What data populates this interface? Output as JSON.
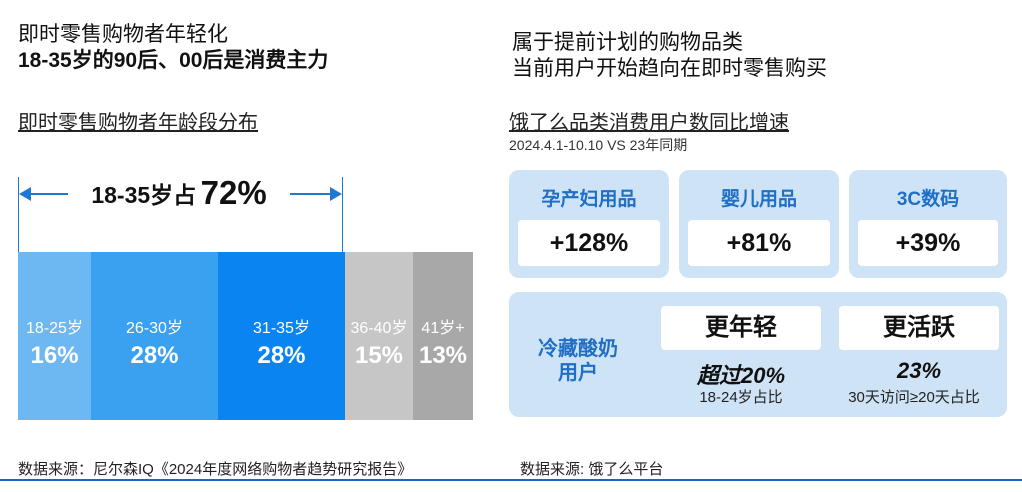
{
  "left": {
    "heading_line1": "即时零售购物者年轻化",
    "heading_line2": "18-35岁的90后、00后是消费主力",
    "subtitle": "即时零售购物者年龄段分布",
    "callout_text": "18-35岁占",
    "callout_value": "72%"
  },
  "right": {
    "heading_line1": "属于提前计划的购物品类",
    "heading_line2": "当前用户开始趋向在即时零售购买",
    "subtitle": "饿了么品类消费用户数同比增速",
    "period": "2024.4.1-10.10 VS 23年同期",
    "cards": [
      {
        "title": "孕产妇用品",
        "value": "+128%"
      },
      {
        "title": "婴儿用品",
        "value": "+81%"
      },
      {
        "title": "3C数码",
        "value": "+39%"
      }
    ],
    "yogurt": {
      "title_line1": "冷藏酸奶",
      "title_line2": "用户",
      "col1_label": "更年轻",
      "col1_value": "超过20%",
      "col1_note": "18-24岁占比",
      "col2_label": "更活跃",
      "col2_value": "23%",
      "col2_note": "30天访问≥20天占比"
    }
  },
  "sources": {
    "left": "数据来源：尼尔森IQ《2024年度网络购物者趋势研究报告》",
    "right": "数据来源: 饿了么平台"
  },
  "chart_data": {
    "type": "bar",
    "stacked_percent": true,
    "title": "即时零售购物者年龄段分布",
    "categories": [
      "18-25岁",
      "26-30岁",
      "31-35岁",
      "36-40岁",
      "41岁+"
    ],
    "values": [
      16,
      28,
      28,
      15,
      13
    ],
    "value_labels": [
      "16%",
      "28%",
      "28%",
      "15%",
      "13%"
    ],
    "colors": [
      "#6db8f3",
      "#3aa0f0",
      "#0a84f0",
      "#c6c6c6",
      "#a8a8a8"
    ],
    "unit": "%"
  }
}
